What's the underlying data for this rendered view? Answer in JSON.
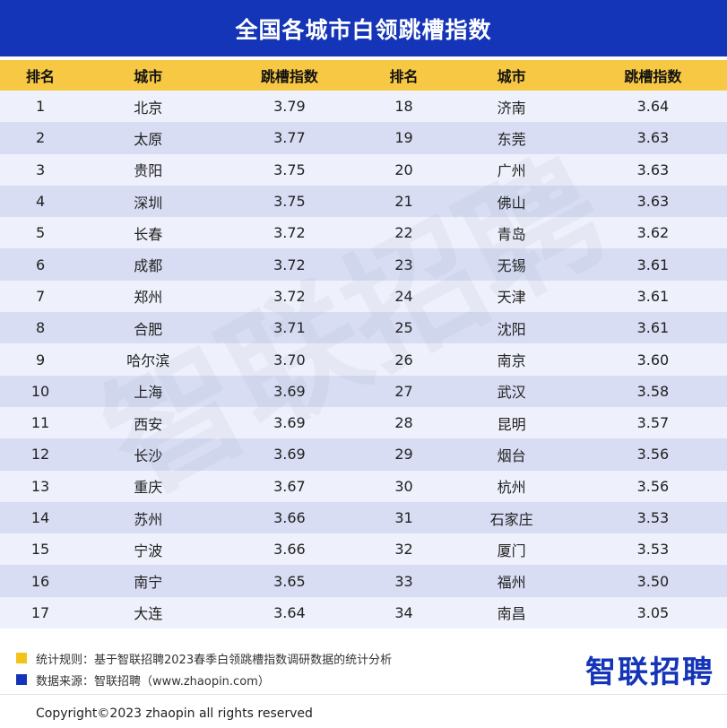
{
  "title": "全国各城市白领跳槽指数",
  "chart_data": {
    "type": "table",
    "columns": [
      "排名",
      "城市",
      "跳槽指数",
      "排名",
      "城市",
      "跳槽指数"
    ],
    "rows": [
      {
        "rank": 1,
        "city": "北京",
        "index": 3.79
      },
      {
        "rank": 2,
        "city": "太原",
        "index": 3.77
      },
      {
        "rank": 3,
        "city": "贵阳",
        "index": 3.75
      },
      {
        "rank": 4,
        "city": "深圳",
        "index": 3.75
      },
      {
        "rank": 5,
        "city": "长春",
        "index": 3.72
      },
      {
        "rank": 6,
        "city": "成都",
        "index": 3.72
      },
      {
        "rank": 7,
        "city": "郑州",
        "index": 3.72
      },
      {
        "rank": 8,
        "city": "合肥",
        "index": 3.71
      },
      {
        "rank": 9,
        "city": "哈尔滨",
        "index": 3.7
      },
      {
        "rank": 10,
        "city": "上海",
        "index": 3.69
      },
      {
        "rank": 11,
        "city": "西安",
        "index": 3.69
      },
      {
        "rank": 12,
        "city": "长沙",
        "index": 3.69
      },
      {
        "rank": 13,
        "city": "重庆",
        "index": 3.67
      },
      {
        "rank": 14,
        "city": "苏州",
        "index": 3.66
      },
      {
        "rank": 15,
        "city": "宁波",
        "index": 3.66
      },
      {
        "rank": 16,
        "city": "南宁",
        "index": 3.65
      },
      {
        "rank": 17,
        "city": "大连",
        "index": 3.64
      },
      {
        "rank": 18,
        "city": "济南",
        "index": 3.64
      },
      {
        "rank": 19,
        "city": "东莞",
        "index": 3.63
      },
      {
        "rank": 20,
        "city": "广州",
        "index": 3.63
      },
      {
        "rank": 21,
        "city": "佛山",
        "index": 3.63
      },
      {
        "rank": 22,
        "city": "青岛",
        "index": 3.62
      },
      {
        "rank": 23,
        "city": "无锡",
        "index": 3.61
      },
      {
        "rank": 24,
        "city": "天津",
        "index": 3.61
      },
      {
        "rank": 25,
        "city": "沈阳",
        "index": 3.61
      },
      {
        "rank": 26,
        "city": "南京",
        "index": 3.6
      },
      {
        "rank": 27,
        "city": "武汉",
        "index": 3.58
      },
      {
        "rank": 28,
        "city": "昆明",
        "index": 3.57
      },
      {
        "rank": 29,
        "city": "烟台",
        "index": 3.56
      },
      {
        "rank": 30,
        "city": "杭州",
        "index": 3.56
      },
      {
        "rank": 31,
        "city": "石家庄",
        "index": 3.53
      },
      {
        "rank": 32,
        "city": "厦门",
        "index": 3.53
      },
      {
        "rank": 33,
        "city": "福州",
        "index": 3.5
      },
      {
        "rank": 34,
        "city": "南昌",
        "index": 3.05
      }
    ]
  },
  "watermark": "智联招聘",
  "notes": {
    "rule": "统计规则：基于智联招聘2023春季白领跳槽指数调研数据的统计分析",
    "source": "数据来源：智联招聘（www.zhaopin.com）"
  },
  "brand": "智联招聘",
  "copyright": "Copyright©2023 zhaopin all rights reserved",
  "colors": {
    "title_bg": "#1535b8",
    "header_bg": "#f7c843",
    "row_light": "#eef0fb",
    "row_dark": "#d8ddf3"
  }
}
